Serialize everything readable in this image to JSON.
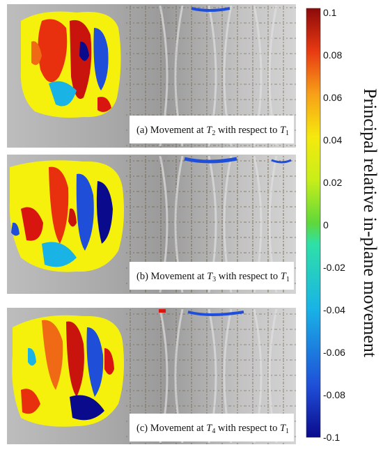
{
  "panels": [
    {
      "prefix": "(a) Movement at ",
      "var": "T",
      "sub": "2",
      "mid": " with respect to ",
      "var2": "T",
      "sub2": "1"
    },
    {
      "prefix": "(b) Movement at ",
      "var": "T",
      "sub": "3",
      "mid": " with respect to ",
      "var2": "T",
      "sub2": "1"
    },
    {
      "prefix": "(c) Movement at ",
      "var": "T",
      "sub": "4",
      "mid": " with respect to ",
      "var2": "T",
      "sub2": "1"
    }
  ],
  "colorbar": {
    "label": "Principal relative in-plane movement",
    "ticks": [
      "0.1",
      "0.08",
      "0.06",
      "0.04",
      "0.02",
      "0",
      "-0.02",
      "-0.04",
      "-0.06",
      "-0.08",
      "-0.1"
    ],
    "min": -0.1,
    "max": 0.1,
    "colors": [
      "#0a0a8c",
      "#1f4fd8",
      "#19b3e6",
      "#2ee0a8",
      "#7fd62a",
      "#f5f10d",
      "#f7b418",
      "#f06a16",
      "#d8160f",
      "#8c0a0a"
    ]
  }
}
